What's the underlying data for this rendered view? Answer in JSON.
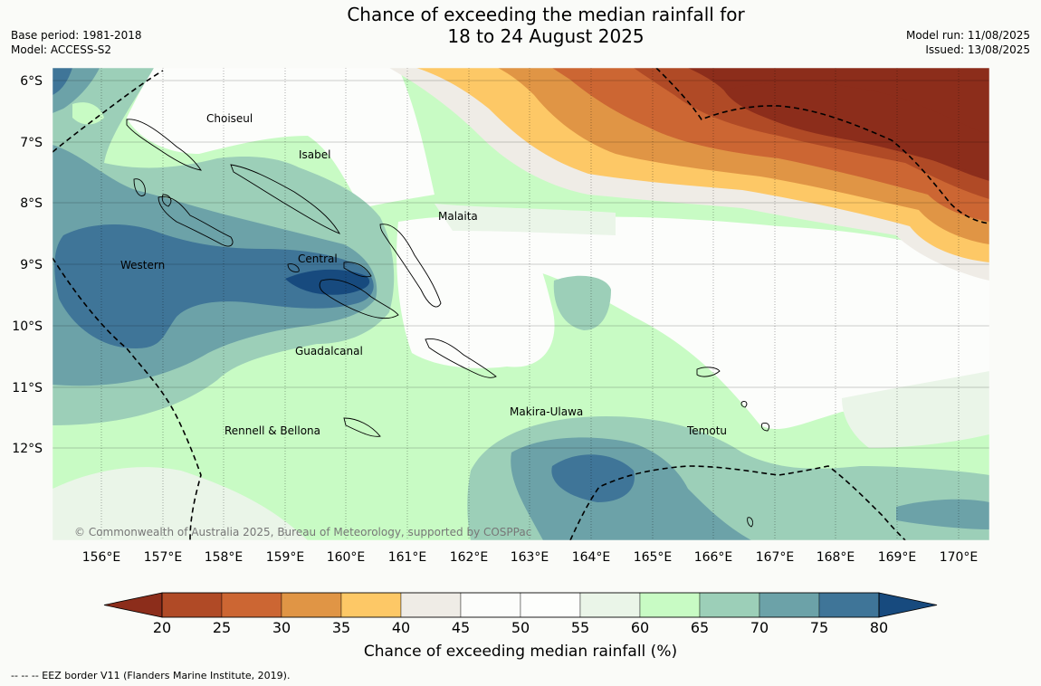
{
  "header": {
    "title_line1": "Chance of exceeding the median rainfall for",
    "title_line2": "18 to 24 August 2025",
    "base_period": "Base period: 1981-2018",
    "model": "Model: ACCESS-S2",
    "model_run": "Model run: 11/08/2025",
    "issued": "Issued: 13/08/2025"
  },
  "map": {
    "lat_labels": [
      "6°S",
      "7°S",
      "8°S",
      "9°S",
      "10°S",
      "11°S",
      "12°S"
    ],
    "lon_labels": [
      "156°E",
      "157°E",
      "158°E",
      "159°E",
      "160°E",
      "161°E",
      "162°E",
      "163°E",
      "164°E",
      "165°E",
      "166°E",
      "167°E",
      "168°E",
      "169°E",
      "170°E"
    ],
    "regions": {
      "choiseul": "Choiseul",
      "isabel": "Isabel",
      "malaita": "Malaita",
      "western": "Western",
      "central": "Central",
      "guadalcanal": "Guadalcanal",
      "makira_ulawa": "Makira-Ulawa",
      "temotu": "Temotu",
      "rennell_bellona": "Rennell & Bellona"
    },
    "copyright": "© Commonwealth of Australia 2025, Bureau of Meteorology, supported by COSPPac"
  },
  "colorbar": {
    "ticks": [
      "20",
      "25",
      "30",
      "35",
      "40",
      "45",
      "50",
      "55",
      "60",
      "65",
      "70",
      "75",
      "80"
    ],
    "colors": [
      "#8c2d1b",
      "#b04a26",
      "#cc6633",
      "#e09545",
      "#fdc866",
      "#efece6",
      "#fcfdfb",
      "#fdfefc",
      "#eaf5e8",
      "#c8fbc4",
      "#9ccfb8",
      "#6ca2a8",
      "#3f7598",
      "#174a7e"
    ],
    "title": "Chance of exceeding median rainfall (%)"
  },
  "footnote": "--  --  -- EEZ border V11 (Flanders Marine Institute, 2019)."
}
